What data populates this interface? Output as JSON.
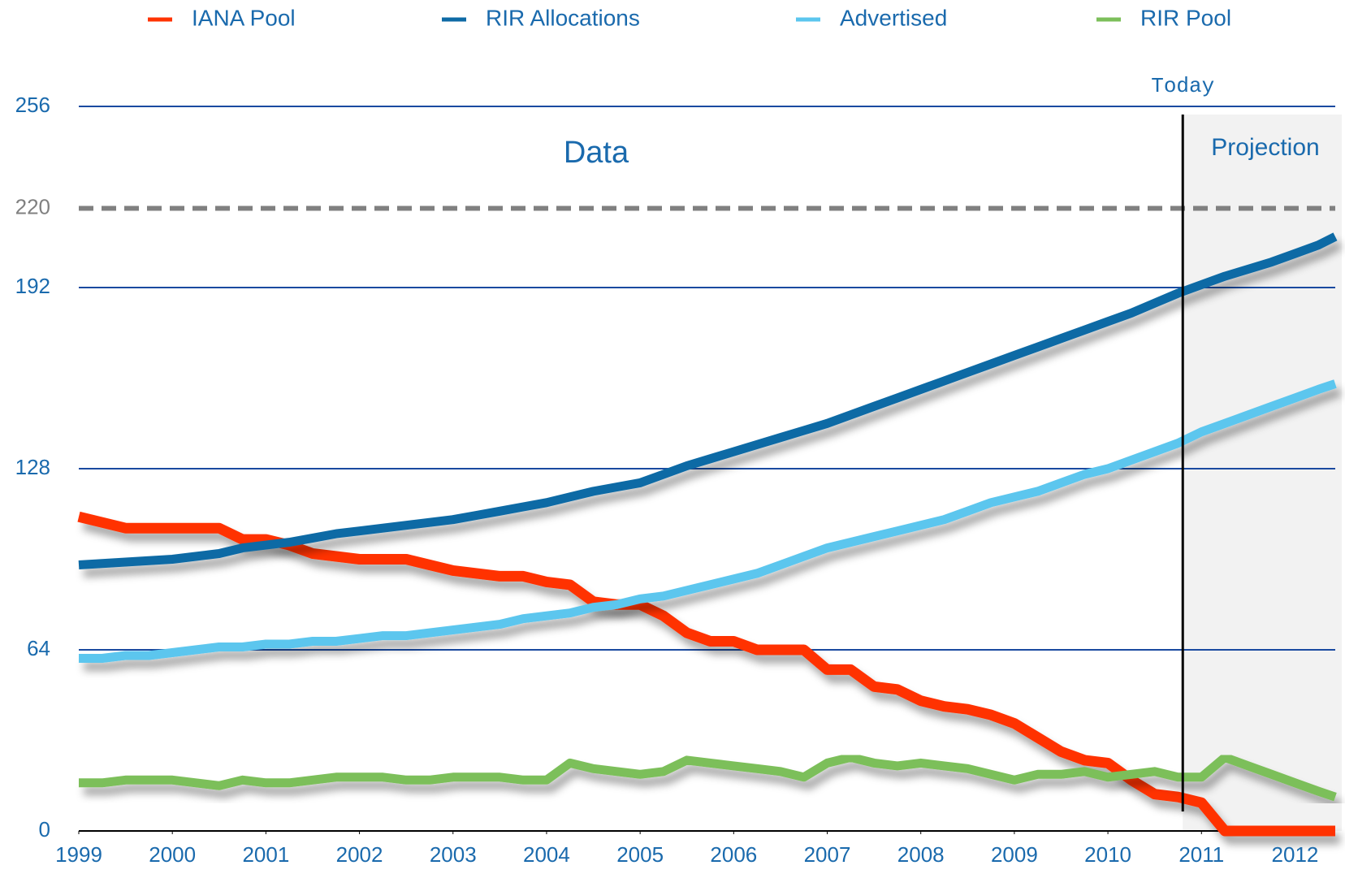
{
  "chart_data": {
    "type": "line",
    "x": [
      1999,
      1999.25,
      1999.5,
      1999.75,
      2000,
      2000.25,
      2000.5,
      2000.75,
      2001,
      2001.25,
      2001.5,
      2001.75,
      2002,
      2002.25,
      2002.5,
      2002.75,
      2003,
      2003.25,
      2003.5,
      2003.75,
      2004,
      2004.25,
      2004.5,
      2004.75,
      2005,
      2005.25,
      2005.5,
      2005.75,
      2006,
      2006.25,
      2006.5,
      2006.75,
      2007,
      2007.25,
      2007.5,
      2007.75,
      2008,
      2008.25,
      2008.5,
      2008.75,
      2009,
      2009.25,
      2009.5,
      2009.75,
      2010,
      2010.25,
      2010.5,
      2010.75,
      2011,
      2011.25,
      2011.5,
      2011.75,
      2012,
      2012.25,
      2012.43
    ],
    "series": [
      {
        "name": "IANA Pool",
        "color": "#ff3300",
        "values": [
          111,
          109,
          107,
          107,
          107,
          107,
          107,
          103,
          103,
          101,
          98,
          97,
          96,
          96,
          96,
          94,
          92,
          91,
          90,
          90,
          88,
          87,
          81,
          80,
          80,
          76,
          70,
          67,
          67,
          64,
          64,
          64,
          57,
          57,
          51,
          50,
          46,
          44,
          43,
          41,
          38,
          33,
          28,
          25,
          24,
          18,
          13,
          12,
          10,
          0,
          0,
          0,
          0,
          0,
          0
        ]
      },
      {
        "name": "RIR Allocations",
        "color": "#0e6aa5",
        "values": [
          94,
          94.5,
          95,
          95.5,
          96,
          97,
          98,
          100,
          101,
          102,
          103.5,
          105,
          106,
          107,
          108,
          109,
          110,
          111.5,
          113,
          114.5,
          116,
          118,
          120,
          121.5,
          123,
          126,
          129,
          131.5,
          134,
          136.5,
          139,
          141.5,
          144,
          147,
          150,
          153,
          156,
          159,
          162,
          165,
          168,
          171,
          174,
          177,
          180,
          183,
          186.5,
          190,
          193,
          196,
          198.5,
          201,
          204,
          207,
          210
        ]
      },
      {
        "name": "Advertised",
        "color": "#5bc6ee",
        "values": [
          61,
          61,
          62,
          62,
          63,
          64,
          65,
          65,
          66,
          66,
          67,
          67,
          68,
          69,
          69,
          70,
          71,
          72,
          73,
          75,
          76,
          77,
          79,
          80,
          82,
          83,
          85,
          87,
          89,
          91,
          94,
          97,
          100,
          102,
          104,
          106,
          108,
          110,
          113,
          116,
          118,
          120,
          123,
          126,
          128,
          131,
          134,
          137,
          141,
          144,
          147,
          150,
          153,
          156,
          158
        ]
      },
      {
        "name": "RIR Pool",
        "color": "#7cbf5a",
        "values": [
          17,
          17,
          18,
          18,
          18,
          17,
          16,
          18,
          17,
          17,
          18,
          19,
          19,
          19,
          18,
          18,
          19,
          19,
          19,
          18,
          18,
          24,
          22,
          21,
          20,
          21,
          25,
          24,
          23,
          22,
          21,
          19,
          24,
          26,
          24,
          23,
          24,
          23,
          22,
          20,
          18,
          20,
          20,
          21,
          19,
          20,
          21,
          19,
          19,
          26,
          23,
          20,
          17,
          14,
          12
        ]
      }
    ],
    "xlim": [
      1999,
      2012.43
    ],
    "xticks": [
      1999,
      2000,
      2001,
      2002,
      2003,
      2004,
      2005,
      2006,
      2007,
      2008,
      2009,
      2010,
      2011,
      2012
    ],
    "ylim": [
      0,
      256
    ],
    "yticks": [
      0,
      64,
      128,
      192,
      256
    ],
    "grid": true,
    "legend": "top",
    "reference_line": 220,
    "today": {
      "x": 2010.8,
      "label": "Today"
    },
    "annotations": [
      "Data",
      "Projection"
    ]
  }
}
